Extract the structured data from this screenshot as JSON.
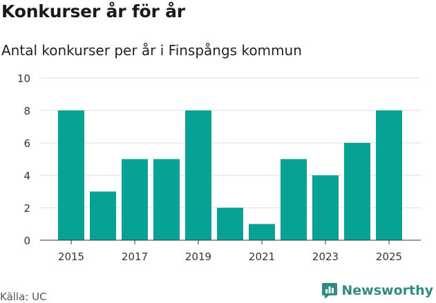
{
  "header": {
    "title": "Konkurser år för år",
    "subtitle": "Antal konkurser per år i Finspångs kommun"
  },
  "footer": {
    "source": "Källa: UC",
    "brand": "Newsworthy"
  },
  "colors": {
    "bar": "#06a294",
    "grid": "#dcdcdc",
    "axis": "#333333",
    "brand": "#2f8c82"
  },
  "chart_data": {
    "type": "bar",
    "title": "Konkurser år för år",
    "subtitle": "Antal konkurser per år i Finspångs kommun",
    "xlabel": "",
    "ylabel": "",
    "categories": [
      "2015",
      "2016",
      "2017",
      "2018",
      "2019",
      "2020",
      "2021",
      "2022",
      "2023",
      "2024",
      "2025"
    ],
    "values": [
      8,
      3,
      5,
      5,
      8,
      2,
      1,
      5,
      4,
      6,
      8
    ],
    "x_tick_labels": [
      "2015",
      "2017",
      "2019",
      "2021",
      "2023",
      "2025"
    ],
    "y_ticks": [
      0,
      2,
      4,
      6,
      8,
      10
    ],
    "ylim": [
      0,
      10
    ],
    "grid": true,
    "legend": "none"
  }
}
